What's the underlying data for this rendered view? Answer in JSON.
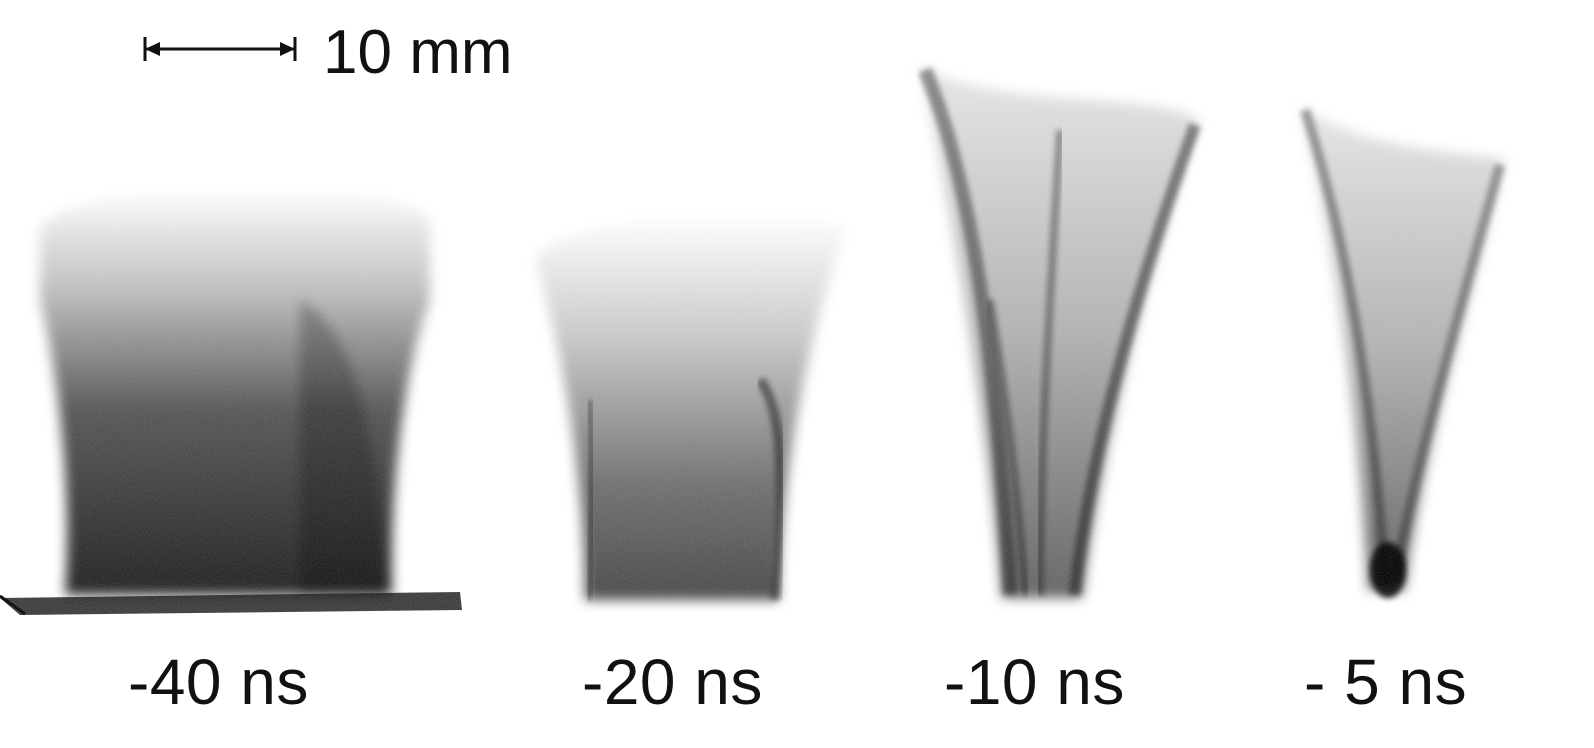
{
  "scale_bar": {
    "label": "10 mm"
  },
  "frames": [
    {
      "time_label": "-40 ns"
    },
    {
      "time_label": "-20 ns"
    },
    {
      "time_label": "-10 ns"
    },
    {
      "time_label": "- 5 ns"
    }
  ],
  "colors": {
    "background": "#ffffff",
    "ink": "#111111"
  }
}
